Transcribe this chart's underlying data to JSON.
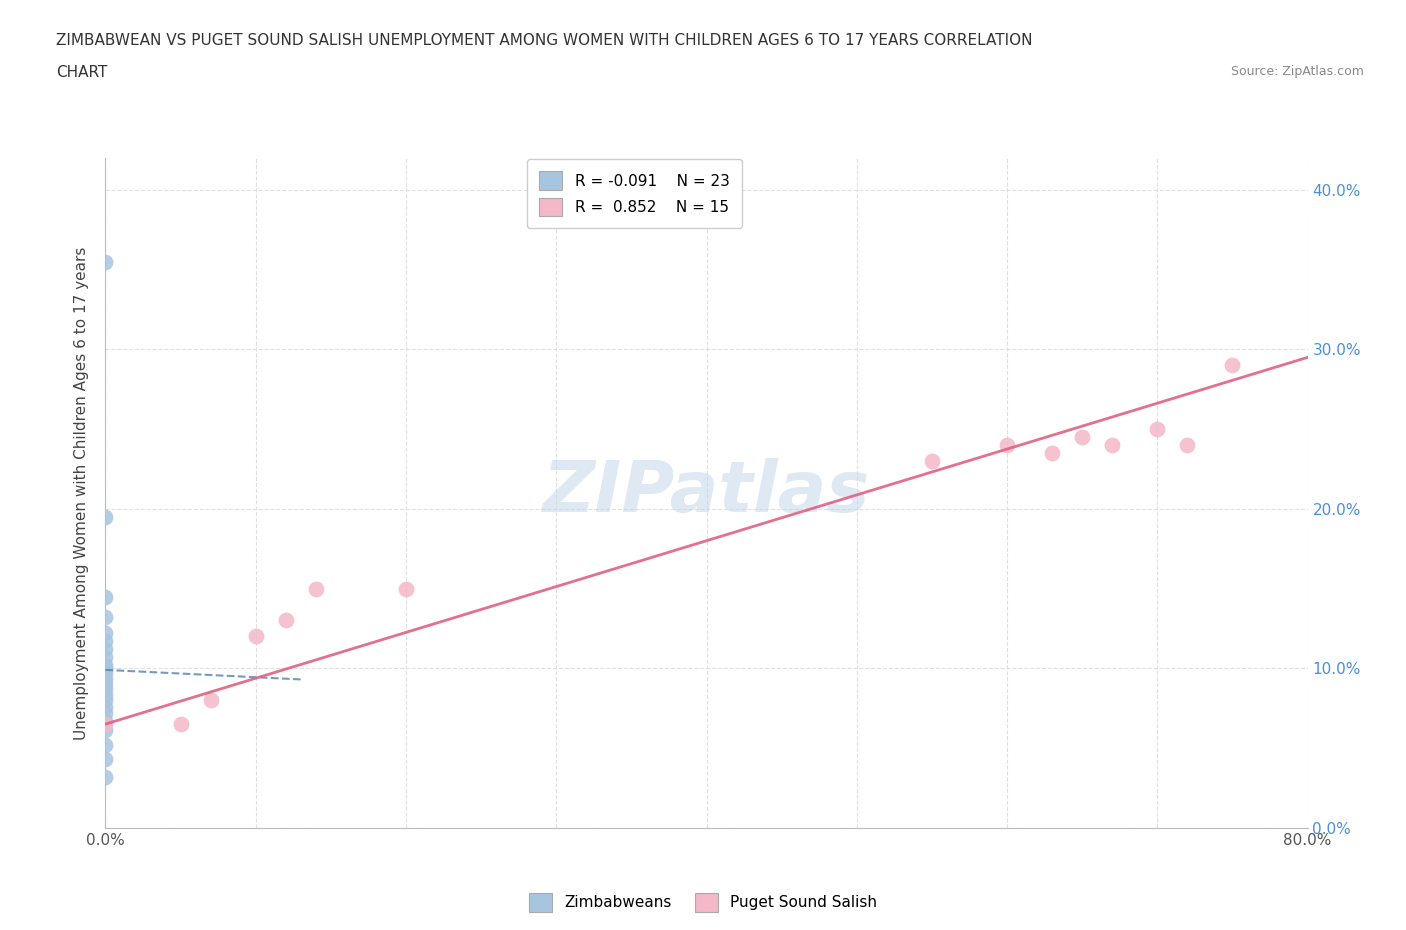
{
  "title_line1": "ZIMBABWEAN VS PUGET SOUND SALISH UNEMPLOYMENT AMONG WOMEN WITH CHILDREN AGES 6 TO 17 YEARS CORRELATION",
  "title_line2": "CHART",
  "source": "Source: ZipAtlas.com",
  "ylabel": "Unemployment Among Women with Children Ages 6 to 17 years",
  "xmin": 0.0,
  "xmax": 0.8,
  "ymin": 0.0,
  "ymax": 0.42,
  "xticks": [
    0.0,
    0.1,
    0.2,
    0.3,
    0.4,
    0.5,
    0.6,
    0.7,
    0.8
  ],
  "yticks": [
    0.0,
    0.1,
    0.2,
    0.3,
    0.4
  ],
  "zimbabwean_x": [
    0.0,
    0.0,
    0.0,
    0.0,
    0.0,
    0.0,
    0.0,
    0.0,
    0.0,
    0.0,
    0.0,
    0.0,
    0.0,
    0.0,
    0.0,
    0.0,
    0.0,
    0.0,
    0.0,
    0.0,
    0.0,
    0.0,
    0.0
  ],
  "zimbabwean_y": [
    0.355,
    0.195,
    0.145,
    0.132,
    0.122,
    0.117,
    0.112,
    0.107,
    0.102,
    0.1,
    0.097,
    0.093,
    0.09,
    0.087,
    0.083,
    0.08,
    0.076,
    0.072,
    0.067,
    0.061,
    0.052,
    0.043,
    0.032
  ],
  "puget_x": [
    0.0,
    0.05,
    0.07,
    0.1,
    0.12,
    0.14,
    0.2,
    0.55,
    0.6,
    0.63,
    0.65,
    0.67,
    0.7,
    0.72,
    0.75
  ],
  "puget_y": [
    0.065,
    0.065,
    0.08,
    0.12,
    0.13,
    0.15,
    0.15,
    0.23,
    0.24,
    0.235,
    0.245,
    0.24,
    0.25,
    0.24,
    0.29
  ],
  "zimbabwean_color": "#a8c5e0",
  "puget_color": "#f4b8c8",
  "zimbabwean_line_color": "#5580b0",
  "puget_line_color": "#e06080",
  "zimbabwean_R": -0.091,
  "zimbabwean_N": 23,
  "puget_R": 0.852,
  "puget_N": 15,
  "zim_trend_x0": 0.0,
  "zim_trend_x1": 0.13,
  "zim_trend_y0": 0.099,
  "zim_trend_y1": 0.093,
  "pug_trend_x0": 0.0,
  "pug_trend_x1": 0.8,
  "pug_trend_y0": 0.065,
  "pug_trend_y1": 0.295,
  "watermark_text": "ZIPatlas",
  "background_color": "#ffffff",
  "grid_color": "#dddddd",
  "marker_size": 130
}
